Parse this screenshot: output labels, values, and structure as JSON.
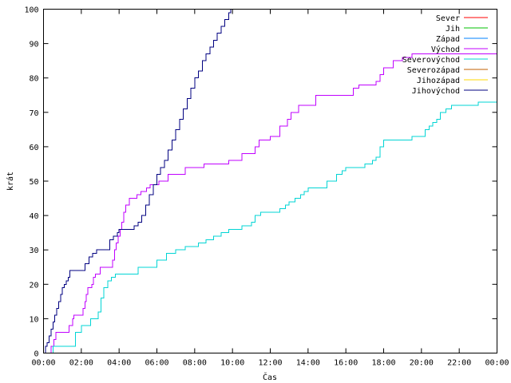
{
  "chart_data": {
    "type": "line",
    "title": "",
    "xlabel": "Čas",
    "ylabel": "krát",
    "xlim": [
      0,
      24
    ],
    "ylim": [
      0,
      100
    ],
    "x_unit": "hours",
    "x_ticks": [
      "00:00",
      "02:00",
      "04:00",
      "06:00",
      "08:00",
      "10:00",
      "12:00",
      "14:00",
      "16:00",
      "18:00",
      "20:00",
      "22:00",
      "00:00"
    ],
    "y_ticks": [
      "0",
      "10",
      "20",
      "30",
      "40",
      "50",
      "60",
      "70",
      "80",
      "90",
      "100"
    ],
    "legend_position": "top-right",
    "grid": false,
    "series": [
      {
        "name": "Sever",
        "color": "#ff0000",
        "x": [],
        "y": []
      },
      {
        "name": "Jih",
        "color": "#00c000",
        "x": [],
        "y": []
      },
      {
        "name": "Západ",
        "color": "#0080ff",
        "x": [],
        "y": []
      },
      {
        "name": "Východ",
        "color": "#c000ff",
        "x": [
          0,
          0.4,
          0.55,
          0.65,
          0.75,
          1.2,
          1.35,
          1.55,
          1.6,
          1.7,
          1.85,
          2.1,
          2.2,
          2.25,
          2.35,
          2.45,
          2.55,
          2.65,
          2.75,
          3.0,
          3.1,
          3.2,
          3.5,
          3.65,
          3.75,
          3.85,
          3.95,
          4.05,
          4.15,
          4.25,
          4.35,
          4.45,
          4.55,
          4.65,
          4.75,
          4.85,
          4.95,
          5.05,
          5.15,
          5.25,
          5.35,
          5.45,
          5.55,
          5.65,
          5.75,
          5.85,
          5.95,
          6.1,
          6.3,
          6.6,
          6.8,
          7.5,
          8.5,
          9.8,
          10.5,
          11.2,
          11.4,
          11.6,
          11.8,
          12.0,
          12.2,
          12.5,
          12.9,
          13.1,
          13.3,
          13.5,
          14.0,
          14.4,
          14.6,
          15.0,
          15.5,
          16.0,
          16.4,
          16.7,
          17.0,
          17.3,
          17.6,
          17.8,
          18.0,
          18.2,
          18.5,
          19.0,
          19.5,
          24
        ],
        "y": [
          0,
          2,
          4,
          6,
          6,
          6,
          8,
          10,
          11,
          11,
          11,
          13,
          15,
          17,
          19,
          19,
          20,
          22,
          23,
          25,
          25,
          25,
          25,
          27,
          30,
          32,
          34,
          36,
          38,
          41,
          43,
          43,
          45,
          45,
          45,
          45,
          46,
          46,
          47,
          47,
          47,
          48,
          48,
          49,
          49,
          49,
          49,
          50,
          50,
          52,
          52,
          54,
          55,
          56,
          58,
          60,
          62,
          62,
          62,
          63,
          63,
          66,
          68,
          70,
          70,
          72,
          72,
          75,
          75,
          75,
          75,
          75,
          77,
          78,
          78,
          78,
          79,
          81,
          83,
          83,
          85,
          86,
          87,
          89
        ]
      },
      {
        "name": "Severovýchod",
        "color": "#00d4d4",
        "x": [
          0,
          0.3,
          0.5,
          0.6,
          1.0,
          1.4,
          1.7,
          2.0,
          2.1,
          2.25,
          2.5,
          2.7,
          2.9,
          3.05,
          3.2,
          3.4,
          3.6,
          3.8,
          4.0,
          4.2,
          5.0,
          6.0,
          6.5,
          7.0,
          7.5,
          7.8,
          8.2,
          8.6,
          9.0,
          9.4,
          9.8,
          10.5,
          11.0,
          11.2,
          11.5,
          12.0,
          12.5,
          12.8,
          13.0,
          13.3,
          13.6,
          13.8,
          14.0,
          14.2,
          14.5,
          15.0,
          15.5,
          15.8,
          16.0,
          16.5,
          17.0,
          17.4,
          17.6,
          17.8,
          18.0,
          18.5,
          19.0,
          19.5,
          20.0,
          20.2,
          20.4,
          20.6,
          20.8,
          21.0,
          21.3,
          21.6,
          22.0,
          22.5,
          23.0,
          24
        ],
        "y": [
          0,
          0,
          2,
          2,
          2,
          2,
          6,
          8,
          8,
          8,
          10,
          10,
          12,
          16,
          19,
          21,
          22,
          23,
          23,
          23,
          25,
          27,
          29,
          30,
          31,
          31,
          32,
          33,
          34,
          35,
          36,
          37,
          38,
          40,
          41,
          41,
          42,
          43,
          44,
          45,
          46,
          47,
          48,
          48,
          48,
          50,
          52,
          53,
          54,
          54,
          55,
          56,
          57,
          60,
          62,
          62,
          62,
          63,
          63,
          65,
          66,
          67,
          68,
          70,
          71,
          72,
          72,
          72,
          73,
          73
        ]
      },
      {
        "name": "Severozápad",
        "color": "#c06000",
        "x": [],
        "y": []
      },
      {
        "name": "Jihozápad",
        "color": "#ffd700",
        "x": [],
        "y": []
      },
      {
        "name": "Jihovýchod",
        "color": "#000080",
        "x": [
          0,
          0.1,
          0.2,
          0.3,
          0.4,
          0.5,
          0.6,
          0.7,
          0.8,
          0.9,
          1.0,
          1.1,
          1.2,
          1.3,
          1.4,
          1.5,
          2.0,
          2.2,
          2.4,
          2.6,
          2.8,
          3.0,
          3.2,
          3.5,
          3.7,
          3.9,
          4.0,
          4.2,
          4.5,
          4.8,
          5.0,
          5.2,
          5.4,
          5.6,
          5.8,
          6.0,
          6.2,
          6.4,
          6.6,
          6.8,
          7.0,
          7.2,
          7.4,
          7.6,
          7.8,
          8.0,
          8.2,
          8.4,
          8.6,
          8.8,
          9.0,
          9.2,
          9.4,
          9.6,
          9.8,
          9.9
        ],
        "y": [
          0,
          2,
          3,
          5,
          7,
          9,
          11,
          13,
          15,
          17,
          19,
          20,
          21,
          22,
          24,
          24,
          24,
          26,
          28,
          29,
          30,
          30,
          30,
          33,
          34,
          35,
          36,
          36,
          36,
          37,
          38,
          40,
          43,
          46,
          49,
          52,
          54,
          56,
          59,
          62,
          65,
          68,
          71,
          74,
          77,
          80,
          82,
          85,
          87,
          89,
          91,
          93,
          95,
          97,
          99,
          100
        ]
      }
    ]
  }
}
